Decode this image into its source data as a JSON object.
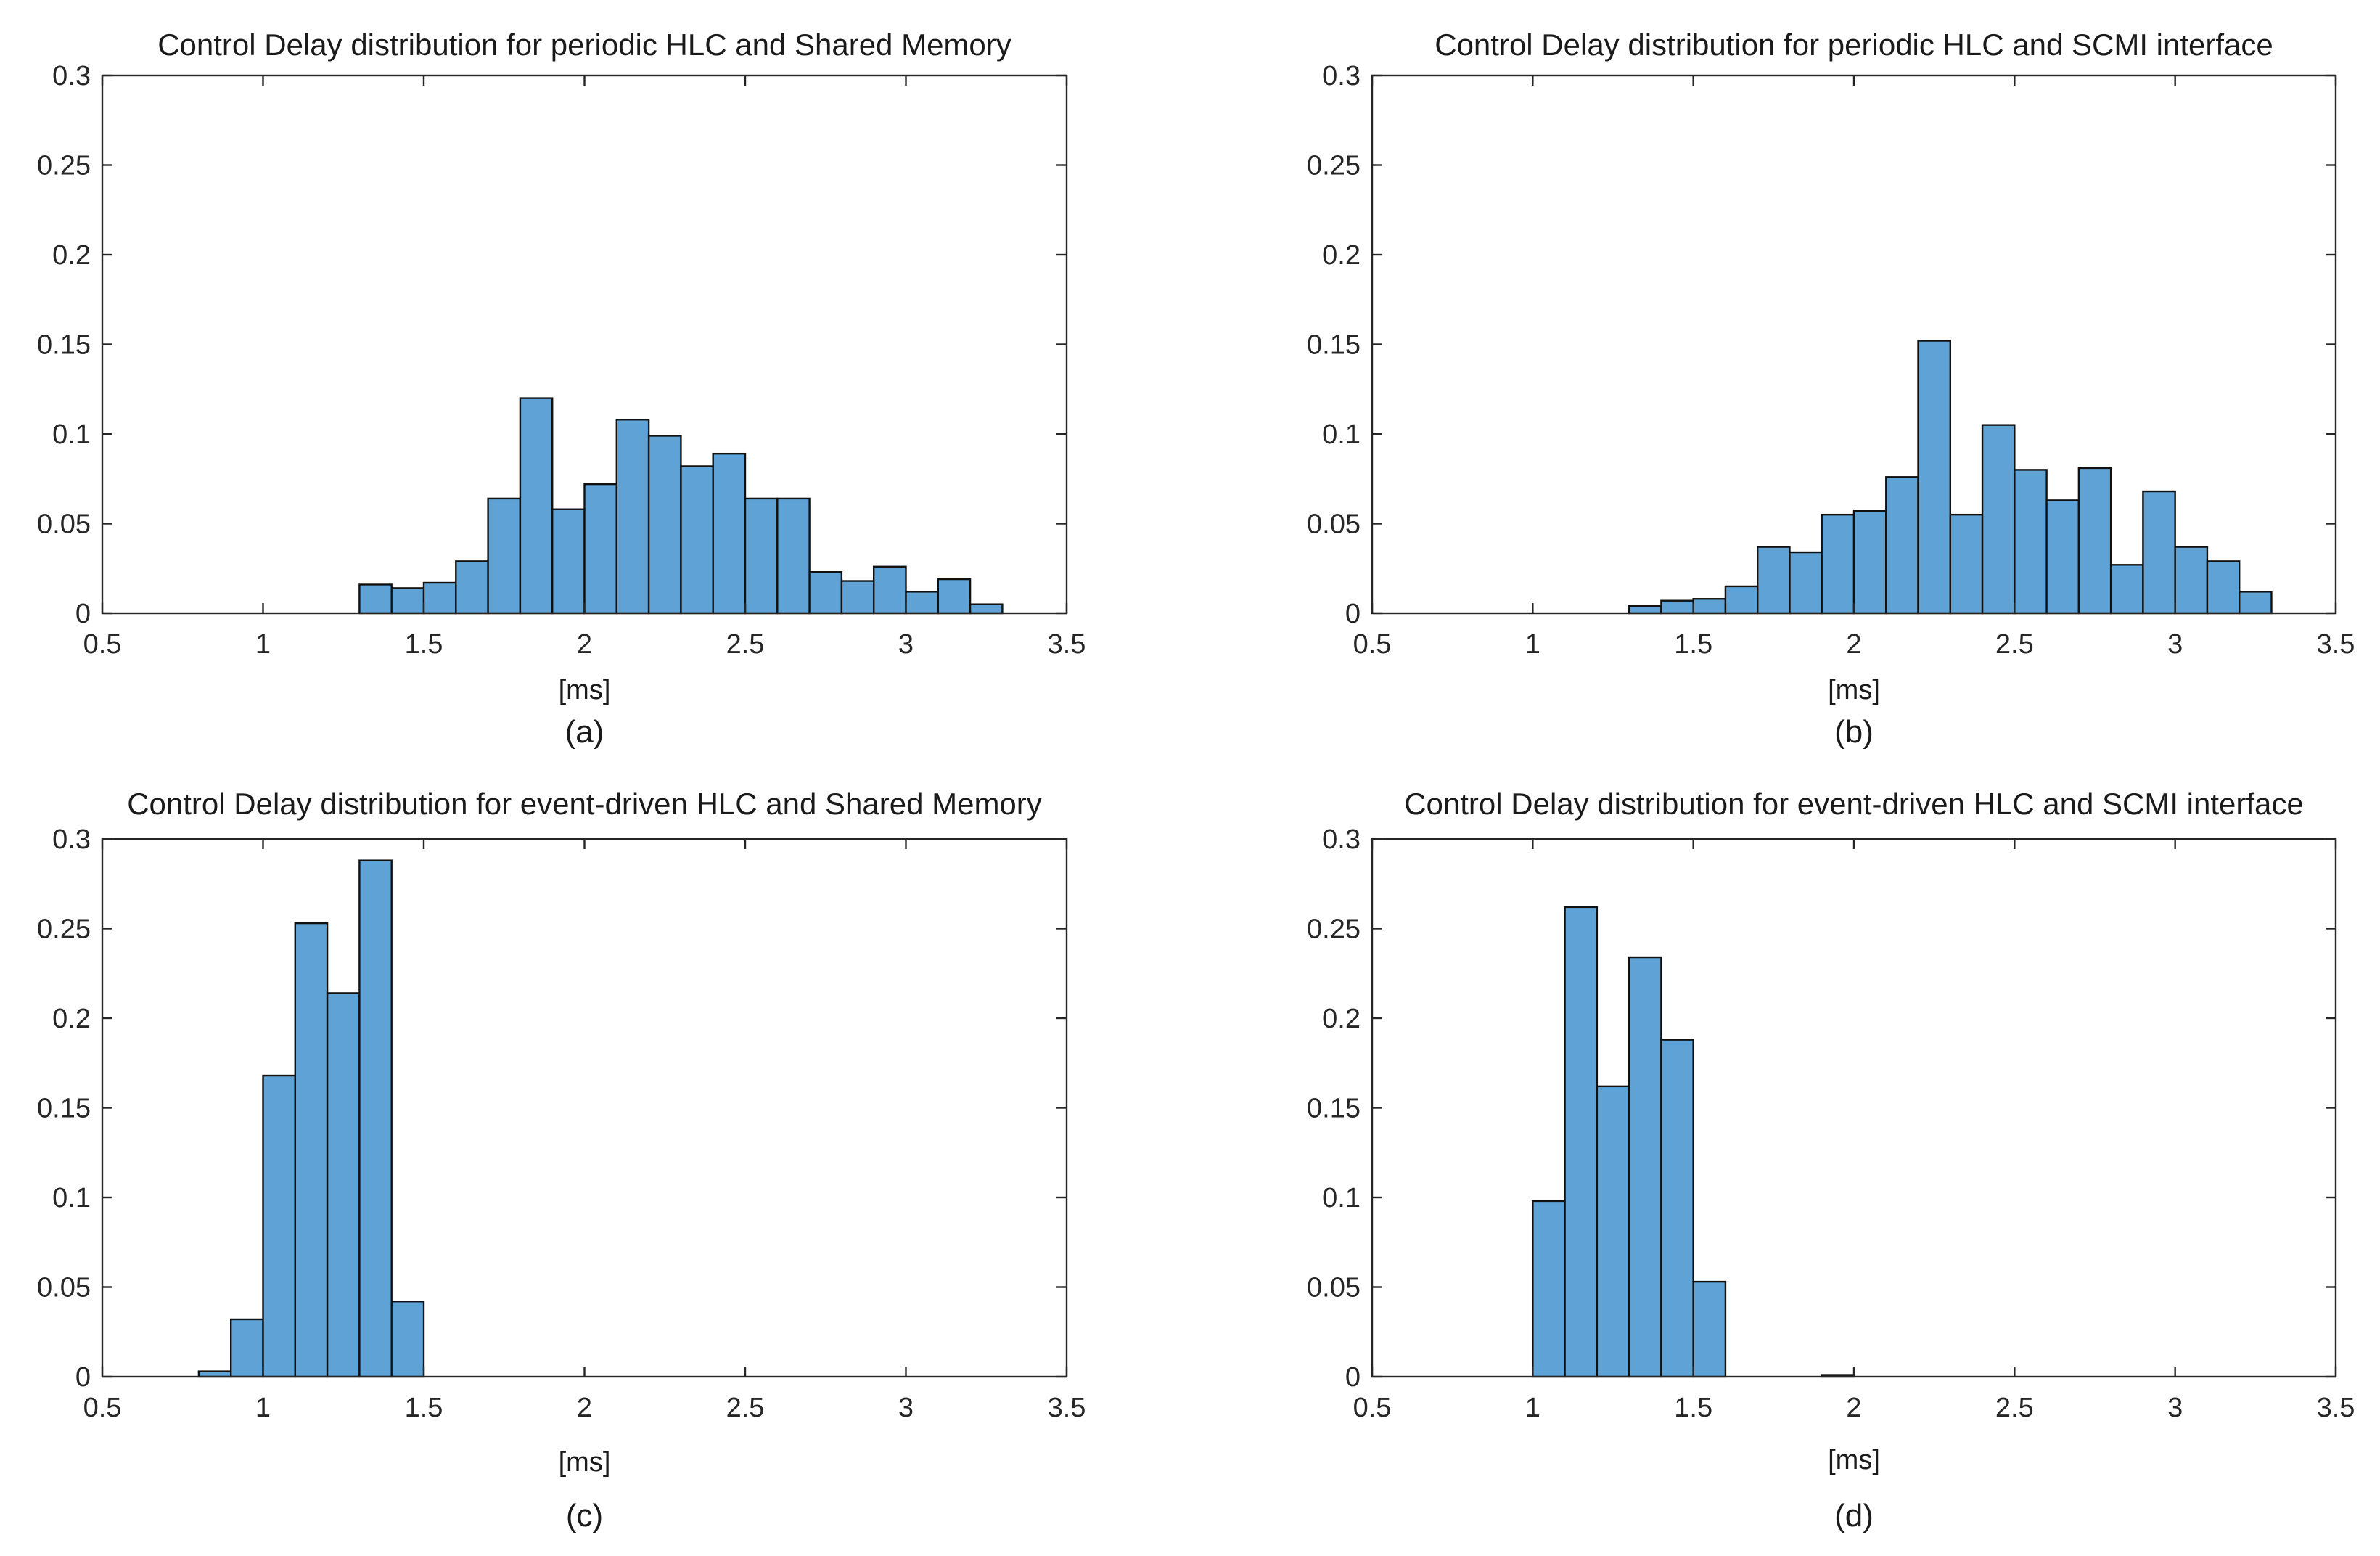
{
  "chart_data": [
    {
      "type": "bar",
      "title": "Control Delay distribution for periodic HLC and Shared Memory",
      "xlabel": "[ms]",
      "ylabel": "",
      "caption": "(a)",
      "xlim": [
        0.5,
        3.5
      ],
      "ylim": [
        0,
        0.3
      ],
      "xticks": [
        "0.5",
        "1",
        "1.5",
        "2",
        "2.5",
        "3",
        "3.5"
      ],
      "yticks": [
        "0",
        "0.05",
        "0.1",
        "0.15",
        "0.2",
        "0.25",
        "0.3"
      ],
      "bin_start": 1.3,
      "bin_width": 0.1,
      "values": [
        0.016,
        0.014,
        0.017,
        0.029,
        0.064,
        0.12,
        0.058,
        0.072,
        0.108,
        0.099,
        0.082,
        0.089,
        0.064,
        0.064,
        0.023,
        0.018,
        0.026,
        0.012,
        0.019,
        0.005
      ]
    },
    {
      "type": "bar",
      "title": "Control Delay distribution for periodic HLC and SCMI interface",
      "xlabel": "[ms]",
      "ylabel": "",
      "caption": "(b)",
      "xlim": [
        0.5,
        3.5
      ],
      "ylim": [
        0,
        0.3
      ],
      "xticks": [
        "0.5",
        "1",
        "1.5",
        "2",
        "2.5",
        "3",
        "3.5"
      ],
      "yticks": [
        "0",
        "0.05",
        "0.1",
        "0.15",
        "0.2",
        "0.25",
        "0.3"
      ],
      "bin_start": 1.3,
      "bin_width": 0.1,
      "values": [
        0.004,
        0.007,
        0.008,
        0.015,
        0.037,
        0.034,
        0.055,
        0.057,
        0.076,
        0.152,
        0.055,
        0.105,
        0.08,
        0.063,
        0.081,
        0.027,
        0.068,
        0.037,
        0.029,
        0.012
      ]
    },
    {
      "type": "bar",
      "title": "Control Delay distribution for event-driven HLC and Shared Memory",
      "xlabel": "[ms]",
      "ylabel": "",
      "caption": "(c)",
      "xlim": [
        0.5,
        3.5
      ],
      "ylim": [
        0,
        0.3
      ],
      "xticks": [
        "0.5",
        "1",
        "1.5",
        "2",
        "2.5",
        "3",
        "3.5"
      ],
      "yticks": [
        "0",
        "0.05",
        "0.1",
        "0.15",
        "0.2",
        "0.25",
        "0.3"
      ],
      "bin_start": 0.8,
      "bin_width": 0.1,
      "values": [
        0.003,
        0.032,
        0.168,
        0.253,
        0.214,
        0.288,
        0.042
      ]
    },
    {
      "type": "bar",
      "title": "Control Delay distribution for event-driven HLC and SCMI interface",
      "xlabel": "[ms]",
      "ylabel": "",
      "caption": "(d)",
      "xlim": [
        0.5,
        3.5
      ],
      "ylim": [
        0,
        0.3
      ],
      "xticks": [
        "0.5",
        "1",
        "1.5",
        "2",
        "2.5",
        "3",
        "3.5"
      ],
      "yticks": [
        "0",
        "0.05",
        "0.1",
        "0.15",
        "0.2",
        "0.25",
        "0.3"
      ],
      "bin_start": 1.0,
      "bin_width": 0.1,
      "values": [
        0.098,
        0.262,
        0.162,
        0.234,
        0.188,
        0.053,
        0,
        0,
        0,
        0.001
      ]
    }
  ],
  "colors": {
    "bar_fill": "#5fa3d6",
    "bar_edge": "#111111"
  }
}
